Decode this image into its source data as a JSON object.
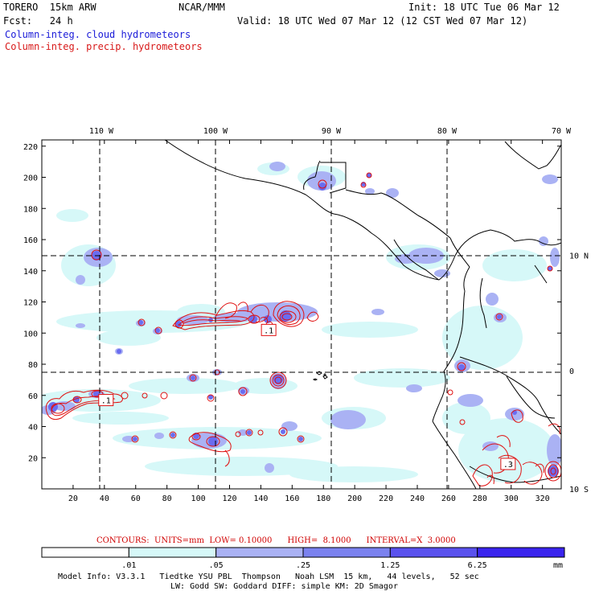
{
  "header": {
    "model": "TORERO  15km ARW",
    "org": "NCAR/MMM",
    "init": "Init: 18 UTC Tue 06 Mar 12",
    "fcst": "Fcst:   24 h",
    "valid": "Valid: 18 UTC Wed 07 Mar 12 (12 CST Wed 07 Mar 12)",
    "legend_cloud": "Column-integ. cloud hydrometeors",
    "legend_precip": "Column-integ. precip. hydrometeors"
  },
  "colors": {
    "cloud_text": "#1a1ad8",
    "precip_text": "#d81a1a",
    "contour": "#e01010"
  },
  "chart_data": {
    "type": "contour-map",
    "x_ticks": [
      20,
      40,
      60,
      80,
      100,
      120,
      140,
      160,
      180,
      200,
      220,
      240,
      260,
      280,
      300,
      320
    ],
    "y_ticks": [
      20,
      40,
      60,
      80,
      100,
      120,
      140,
      160,
      180,
      200,
      220
    ],
    "xlim": [
      0,
      332
    ],
    "ylim": [
      0,
      224
    ],
    "lon_labels": [
      {
        "text": "110 W",
        "x": 38
      },
      {
        "text": "100 W",
        "x": 111
      },
      {
        "text": "90 W",
        "x": 185
      },
      {
        "text": "80 W",
        "x": 259
      },
      {
        "text": "70 W",
        "x": 332
      }
    ],
    "lat_labels": [
      {
        "text": "10 N",
        "y": 150
      },
      {
        "text": "0",
        "y": 76
      },
      {
        "text": "10 S",
        "y": 0
      }
    ],
    "contour_labels": [
      {
        "text": ".1",
        "x": 145,
        "y": 102
      },
      {
        "text": ".1",
        "x": 41,
        "y": 57
      },
      {
        "text": ".3",
        "x": 298,
        "y": 16
      }
    ],
    "contours": {
      "units": "mm",
      "low": "0.10000",
      "high": "8.1000",
      "interval": "3.0000",
      "text": "CONTOURS:  UNITS=mm  LOW= 0.10000      HIGH=  8.1000      INTERVAL=X  3.0000"
    },
    "colorbar": {
      "labels": [
        ".01",
        ".05",
        ".25",
        "1.25",
        "6.25"
      ],
      "unit": "mm",
      "colors": [
        "#ffffff",
        "#d6f8f8",
        "#aab2f4",
        "#7b82ef",
        "#5a52ee",
        "#3a24ee"
      ]
    }
  },
  "footer": {
    "line1": "Model Info: V3.3.1   Tiedtke YSU PBL  Thompson   Noah LSM  15 km,   44 levels,   52 sec",
    "line2": "LW: Godd SW: Goddard DIFF: simple KM: 2D Smagor"
  }
}
